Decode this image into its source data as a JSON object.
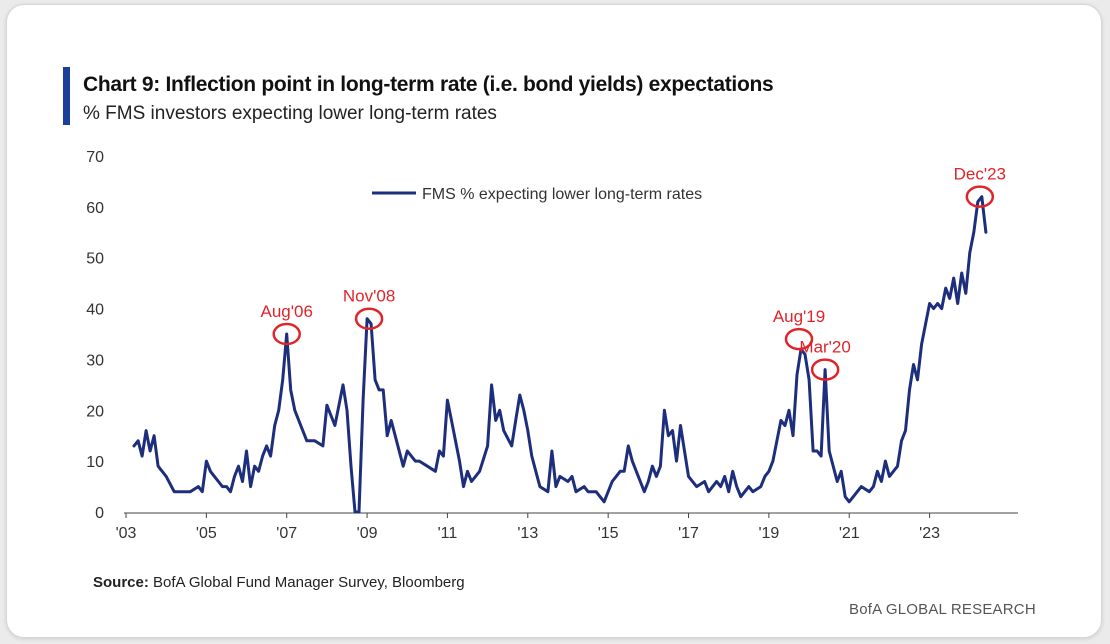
{
  "chart_data": {
    "type": "line",
    "title": "Chart 9: Inflection point in long-term rate (i.e. bond yields) expectations",
    "subtitle": "% FMS investors expecting lower long-term rates",
    "ylim": [
      0,
      70
    ],
    "yticks": [
      0,
      10,
      20,
      30,
      40,
      50,
      60,
      70
    ],
    "xlim": [
      2003,
      2025.2
    ],
    "xticks": [
      {
        "value": 2003,
        "label": "'03"
      },
      {
        "value": 2005,
        "label": "'05"
      },
      {
        "value": 2007,
        "label": "'07"
      },
      {
        "value": 2009,
        "label": "'09"
      },
      {
        "value": 2011,
        "label": "'11"
      },
      {
        "value": 2013,
        "label": "'13"
      },
      {
        "value": 2015,
        "label": "'15"
      },
      {
        "value": 2017,
        "label": "'17"
      },
      {
        "value": 2019,
        "label": "'19"
      },
      {
        "value": 2021,
        "label": "'21"
      },
      {
        "value": 2023,
        "label": "'23"
      }
    ],
    "grid": false,
    "legend": {
      "position": "top-center"
    },
    "series": [
      {
        "name": "FMS % expecting lower long-term rates",
        "color": "#1d2e7c",
        "points": [
          [
            2003.2,
            13
          ],
          [
            2003.3,
            14
          ],
          [
            2003.4,
            11
          ],
          [
            2003.5,
            16
          ],
          [
            2003.6,
            12
          ],
          [
            2003.7,
            15
          ],
          [
            2003.8,
            9
          ],
          [
            2004.0,
            7
          ],
          [
            2004.2,
            4
          ],
          [
            2004.4,
            4
          ],
          [
            2004.6,
            4
          ],
          [
            2004.8,
            5
          ],
          [
            2004.9,
            4
          ],
          [
            2005.0,
            10
          ],
          [
            2005.1,
            8
          ],
          [
            2005.2,
            7
          ],
          [
            2005.3,
            6
          ],
          [
            2005.4,
            5
          ],
          [
            2005.5,
            5
          ],
          [
            2005.6,
            4
          ],
          [
            2005.7,
            7
          ],
          [
            2005.8,
            9
          ],
          [
            2005.9,
            6
          ],
          [
            2006.0,
            12
          ],
          [
            2006.1,
            5
          ],
          [
            2006.2,
            9
          ],
          [
            2006.3,
            8
          ],
          [
            2006.4,
            11
          ],
          [
            2006.5,
            13
          ],
          [
            2006.6,
            11
          ],
          [
            2006.7,
            17
          ],
          [
            2006.8,
            20
          ],
          [
            2006.9,
            26
          ],
          [
            2007.0,
            35
          ],
          [
            2007.1,
            24
          ],
          [
            2007.2,
            20
          ],
          [
            2007.3,
            18
          ],
          [
            2007.5,
            14
          ],
          [
            2007.7,
            14
          ],
          [
            2007.9,
            13
          ],
          [
            2008.0,
            21
          ],
          [
            2008.2,
            17
          ],
          [
            2008.4,
            25
          ],
          [
            2008.5,
            20
          ],
          [
            2008.6,
            9
          ],
          [
            2008.7,
            0
          ],
          [
            2008.8,
            0
          ],
          [
            2008.9,
            22
          ],
          [
            2009.0,
            38
          ],
          [
            2009.1,
            37
          ],
          [
            2009.2,
            26
          ],
          [
            2009.3,
            24
          ],
          [
            2009.4,
            24
          ],
          [
            2009.5,
            15
          ],
          [
            2009.6,
            18
          ],
          [
            2009.8,
            12
          ],
          [
            2009.9,
            9
          ],
          [
            2010.0,
            12
          ],
          [
            2010.2,
            10
          ],
          [
            2010.3,
            10
          ],
          [
            2010.5,
            9
          ],
          [
            2010.7,
            8
          ],
          [
            2010.8,
            12
          ],
          [
            2010.9,
            11
          ],
          [
            2011.0,
            22
          ],
          [
            2011.1,
            18
          ],
          [
            2011.2,
            14
          ],
          [
            2011.3,
            10
          ],
          [
            2011.4,
            5
          ],
          [
            2011.5,
            8
          ],
          [
            2011.6,
            6
          ],
          [
            2011.8,
            8
          ],
          [
            2012.0,
            13
          ],
          [
            2012.1,
            25
          ],
          [
            2012.2,
            18
          ],
          [
            2012.3,
            20
          ],
          [
            2012.4,
            16
          ],
          [
            2012.6,
            13
          ],
          [
            2012.7,
            18
          ],
          [
            2012.8,
            23
          ],
          [
            2012.9,
            20
          ],
          [
            2013.0,
            16
          ],
          [
            2013.1,
            11
          ],
          [
            2013.2,
            8
          ],
          [
            2013.3,
            5
          ],
          [
            2013.5,
            4
          ],
          [
            2013.6,
            12
          ],
          [
            2013.7,
            5
          ],
          [
            2013.8,
            7
          ],
          [
            2014.0,
            6
          ],
          [
            2014.1,
            7
          ],
          [
            2014.2,
            4
          ],
          [
            2014.4,
            5
          ],
          [
            2014.5,
            4
          ],
          [
            2014.7,
            4
          ],
          [
            2014.9,
            2
          ],
          [
            2015.1,
            6
          ],
          [
            2015.3,
            8
          ],
          [
            2015.4,
            8
          ],
          [
            2015.5,
            13
          ],
          [
            2015.6,
            10
          ],
          [
            2015.8,
            6
          ],
          [
            2015.9,
            4
          ],
          [
            2016.0,
            6
          ],
          [
            2016.1,
            9
          ],
          [
            2016.2,
            7
          ],
          [
            2016.3,
            9
          ],
          [
            2016.4,
            20
          ],
          [
            2016.5,
            15
          ],
          [
            2016.6,
            16
          ],
          [
            2016.7,
            10
          ],
          [
            2016.8,
            17
          ],
          [
            2016.9,
            12
          ],
          [
            2017.0,
            7
          ],
          [
            2017.2,
            5
          ],
          [
            2017.4,
            6
          ],
          [
            2017.5,
            4
          ],
          [
            2017.7,
            6
          ],
          [
            2017.8,
            5
          ],
          [
            2017.9,
            7
          ],
          [
            2018.0,
            4
          ],
          [
            2018.1,
            8
          ],
          [
            2018.2,
            5
          ],
          [
            2018.3,
            3
          ],
          [
            2018.5,
            5
          ],
          [
            2018.6,
            4
          ],
          [
            2018.8,
            5
          ],
          [
            2018.9,
            7
          ],
          [
            2019.0,
            8
          ],
          [
            2019.1,
            10
          ],
          [
            2019.3,
            18
          ],
          [
            2019.4,
            17
          ],
          [
            2019.5,
            20
          ],
          [
            2019.6,
            15
          ],
          [
            2019.7,
            27
          ],
          [
            2019.8,
            32
          ],
          [
            2019.9,
            31
          ],
          [
            2020.0,
            26
          ],
          [
            2020.1,
            12
          ],
          [
            2020.2,
            12
          ],
          [
            2020.3,
            11
          ],
          [
            2020.4,
            28
          ],
          [
            2020.5,
            12
          ],
          [
            2020.6,
            9
          ],
          [
            2020.7,
            6
          ],
          [
            2020.8,
            8
          ],
          [
            2020.9,
            3
          ],
          [
            2021.0,
            2
          ],
          [
            2021.1,
            3
          ],
          [
            2021.3,
            5
          ],
          [
            2021.5,
            4
          ],
          [
            2021.6,
            5
          ],
          [
            2021.7,
            8
          ],
          [
            2021.8,
            6
          ],
          [
            2021.9,
            10
          ],
          [
            2022.0,
            7
          ],
          [
            2022.2,
            9
          ],
          [
            2022.3,
            14
          ],
          [
            2022.4,
            16
          ],
          [
            2022.5,
            24
          ],
          [
            2022.6,
            29
          ],
          [
            2022.7,
            26
          ],
          [
            2022.8,
            33
          ],
          [
            2022.9,
            37
          ],
          [
            2023.0,
            41
          ],
          [
            2023.1,
            40
          ],
          [
            2023.2,
            41
          ],
          [
            2023.3,
            40
          ],
          [
            2023.4,
            44
          ],
          [
            2023.5,
            42
          ],
          [
            2023.6,
            46
          ],
          [
            2023.7,
            41
          ],
          [
            2023.8,
            47
          ],
          [
            2023.9,
            43
          ],
          [
            2024.0,
            51
          ],
          [
            2024.1,
            55
          ],
          [
            2024.2,
            61
          ],
          [
            2024.3,
            62
          ],
          [
            2024.4,
            55
          ]
        ]
      }
    ],
    "annotations": [
      {
        "label": "Aug'06",
        "x": 2007.0,
        "y": 35
      },
      {
        "label": "Nov'08",
        "x": 2009.05,
        "y": 38
      },
      {
        "label": "Aug'19",
        "x": 2019.75,
        "y": 34
      },
      {
        "label": "Mar'20",
        "x": 2020.4,
        "y": 28
      },
      {
        "label": "Dec'23",
        "x": 2024.25,
        "y": 62
      }
    ],
    "annotation_color": "#e0242a"
  },
  "footer": {
    "source_label": "Source:",
    "source_text": "BofA Global Fund Manager Survey, Bloomberg",
    "brand": "BofA GLOBAL RESEARCH"
  }
}
